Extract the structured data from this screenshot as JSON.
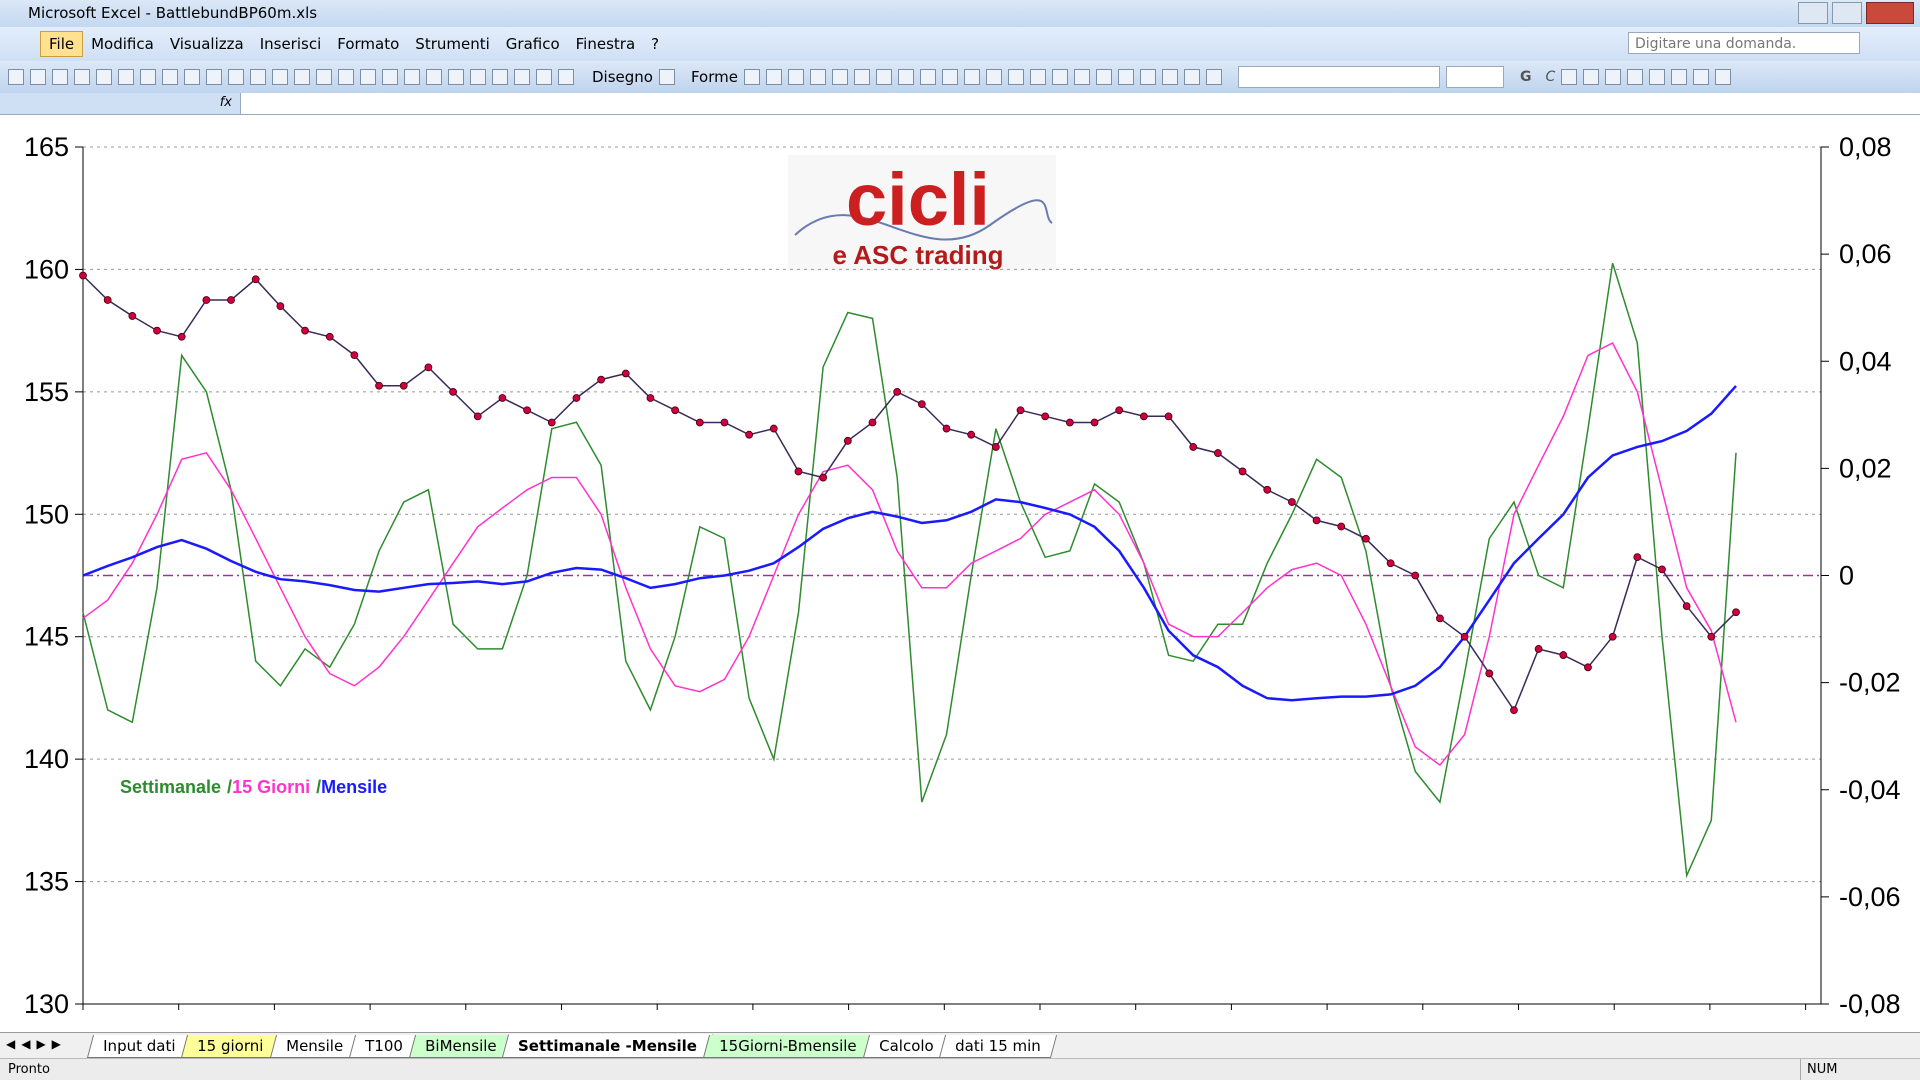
{
  "window": {
    "title": "Microsoft Excel - BattlebundBP60m.xls"
  },
  "menu": [
    "File",
    "Modifica",
    "Visualizza",
    "Inserisci",
    "Formato",
    "Strumenti",
    "Grafico",
    "Finestra",
    "?"
  ],
  "help_box": "Digitare una domanda.",
  "toolbar": {
    "drawing": "Disegno",
    "shapes": "Forme",
    "bold": "G",
    "italic": "C"
  },
  "formula_bar": {
    "fx": "fx"
  },
  "logo": {
    "title": "cicli",
    "subtitle": "e ASC trading"
  },
  "sheet_tabs": [
    {
      "label": "Input dati",
      "color": "#ffffff"
    },
    {
      "label": "15 giorni",
      "color": "#ffff99"
    },
    {
      "label": "Mensile",
      "color": "#ffffff"
    },
    {
      "label": "T100",
      "color": "#ffffff"
    },
    {
      "label": "BiMensile",
      "color": "#ccffcc"
    },
    {
      "label": "Settimanale -Mensile",
      "color": "#ffffff",
      "active": true
    },
    {
      "label": "15Giorni-Bmensile",
      "color": "#ccffcc"
    },
    {
      "label": "Calcolo",
      "color": "#ffffff"
    },
    {
      "label": "dati 15 min",
      "color": "#ffffff"
    }
  ],
  "status": {
    "left": "Pronto",
    "right": "NUM"
  },
  "chart_data": {
    "type": "line",
    "ylim": [
      130,
      165
    ],
    "yticks": [
      130,
      135,
      140,
      145,
      150,
      155,
      160,
      165
    ],
    "y2lim": [
      -0.08,
      0.08
    ],
    "y2ticks": [
      {
        "value": -0.08,
        "label": "-0,08"
      },
      {
        "value": -0.06,
        "label": "-0,06"
      },
      {
        "value": -0.04,
        "label": "-0,04"
      },
      {
        "value": -0.02,
        "label": "-0,02"
      },
      0,
      {
        "value": 0.02,
        "label": "0,02"
      },
      {
        "value": 0.04,
        "label": "0,04"
      },
      {
        "value": 0.06,
        "label": "0,06"
      },
      {
        "value": 0.08,
        "label": "0,08"
      }
    ],
    "grid": true,
    "legend_separator": "/",
    "reference_line": {
      "value": 0,
      "axis": "y2",
      "color": "#993399"
    },
    "series": [
      {
        "color": "#3a2a5a",
        "marker_color": "#cc0044",
        "markers": true,
        "values": [
          159.75,
          158.75,
          158.1,
          157.5,
          157.25,
          158.75,
          158.75,
          159.6,
          158.5,
          157.5,
          157.25,
          156.5,
          155.25,
          155.25,
          156,
          155,
          154,
          154.75,
          154.25,
          153.75,
          154.75,
          155.5,
          155.75,
          154.75,
          154.25,
          153.75,
          153.75,
          153.25,
          153.5,
          151.75,
          151.5,
          153,
          153.75,
          155,
          154.5,
          153.5,
          153.25,
          152.75,
          154.25,
          154,
          153.75,
          153.75,
          154.25,
          154,
          154,
          152.75,
          152.5,
          151.75,
          151,
          150.5,
          149.75,
          149.5,
          149,
          148,
          147.5,
          145.75,
          145,
          143.5,
          142,
          144.5,
          144.25,
          143.75,
          145,
          148.25,
          147.75,
          146.25,
          145,
          146
        ]
      },
      {
        "name": "Settimanale",
        "color": "#2e8b2e",
        "axis": "y2",
        "values": [
          -0.0069,
          -0.0251,
          -0.0274,
          -0.0023,
          0.0411,
          0.0343,
          0.016,
          -0.016,
          -0.0206,
          -0.0137,
          -0.0171,
          -0.0091,
          0.0046,
          0.0137,
          0.016,
          -0.0091,
          -0.0137,
          -0.0137,
          0,
          0.0274,
          0.0286,
          0.0206,
          -0.016,
          -0.0251,
          -0.0114,
          0.0091,
          0.0069,
          -0.0229,
          -0.0343,
          -0.0069,
          0.0389,
          0.0491,
          0.048,
          0.0183,
          -0.0423,
          -0.0297,
          0,
          0.0274,
          0.0137,
          0.0034,
          0.0046,
          0.0171,
          0.0137,
          0.0023,
          -0.0149,
          -0.016,
          -0.0091,
          -0.0091,
          0.0023,
          0.0114,
          0.0217,
          0.0183,
          0.0046,
          -0.0206,
          -0.0366,
          -0.0423,
          -0.0183,
          0.0069,
          0.0137,
          0,
          -0.0023,
          0.0274,
          0.0583,
          0.0434,
          -0.0114,
          -0.056,
          -0.0457,
          0.0229
        ]
      },
      {
        "name": "15 Giorni",
        "color": "#ff33cc",
        "axis": "y2",
        "values": [
          -0.008,
          -0.0046,
          0.0023,
          0.0114,
          0.0217,
          0.0229,
          0.016,
          0.0069,
          -0.0023,
          -0.0114,
          -0.0183,
          -0.0206,
          -0.0171,
          -0.0114,
          -0.0046,
          0.0023,
          0.0091,
          0.0126,
          0.016,
          0.0183,
          0.0183,
          0.0114,
          -0.0023,
          -0.0137,
          -0.0206,
          -0.0217,
          -0.0194,
          -0.0114,
          0,
          0.0114,
          0.0194,
          0.0206,
          0.016,
          0.0046,
          -0.0023,
          -0.0023,
          0.0023,
          0.0046,
          0.0069,
          0.0114,
          0.0137,
          0.016,
          0.0114,
          0.0023,
          -0.0091,
          -0.0114,
          -0.0114,
          -0.0069,
          -0.0023,
          0.0011,
          0.0023,
          0,
          -0.0091,
          -0.0206,
          -0.032,
          -0.0354,
          -0.0297,
          -0.0114,
          0.0114,
          0.0206,
          0.0297,
          0.0411,
          0.0434,
          0.0343,
          0.016,
          -0.0023,
          -0.0103,
          -0.0274
        ]
      },
      {
        "name": "Mensile",
        "color": "#1a1aff",
        "axis": "y2",
        "values": [
          0,
          0.0018,
          0.0034,
          0.0053,
          0.0066,
          0.005,
          0.0027,
          0.0007,
          -0.0007,
          -0.0011,
          -0.0018,
          -0.0027,
          -0.003,
          -0.0023,
          -0.0016,
          -0.0014,
          -0.0011,
          -0.0016,
          -0.0011,
          0.0005,
          0.0014,
          0.0011,
          -0.0005,
          -0.0023,
          -0.0016,
          -0.0005,
          0,
          0.0009,
          0.0023,
          0.0053,
          0.0087,
          0.0107,
          0.0119,
          0.011,
          0.0098,
          0.0103,
          0.0119,
          0.0142,
          0.0137,
          0.0126,
          0.0114,
          0.0091,
          0.0046,
          -0.0023,
          -0.0103,
          -0.0149,
          -0.0171,
          -0.0206,
          -0.0229,
          -0.0233,
          -0.0229,
          -0.0226,
          -0.0226,
          -0.0222,
          -0.0206,
          -0.0171,
          -0.0114,
          -0.0046,
          0.0023,
          0.0069,
          0.0114,
          0.0183,
          0.0224,
          0.024,
          0.0251,
          0.027,
          0.0302,
          0.0354
        ]
      }
    ]
  }
}
